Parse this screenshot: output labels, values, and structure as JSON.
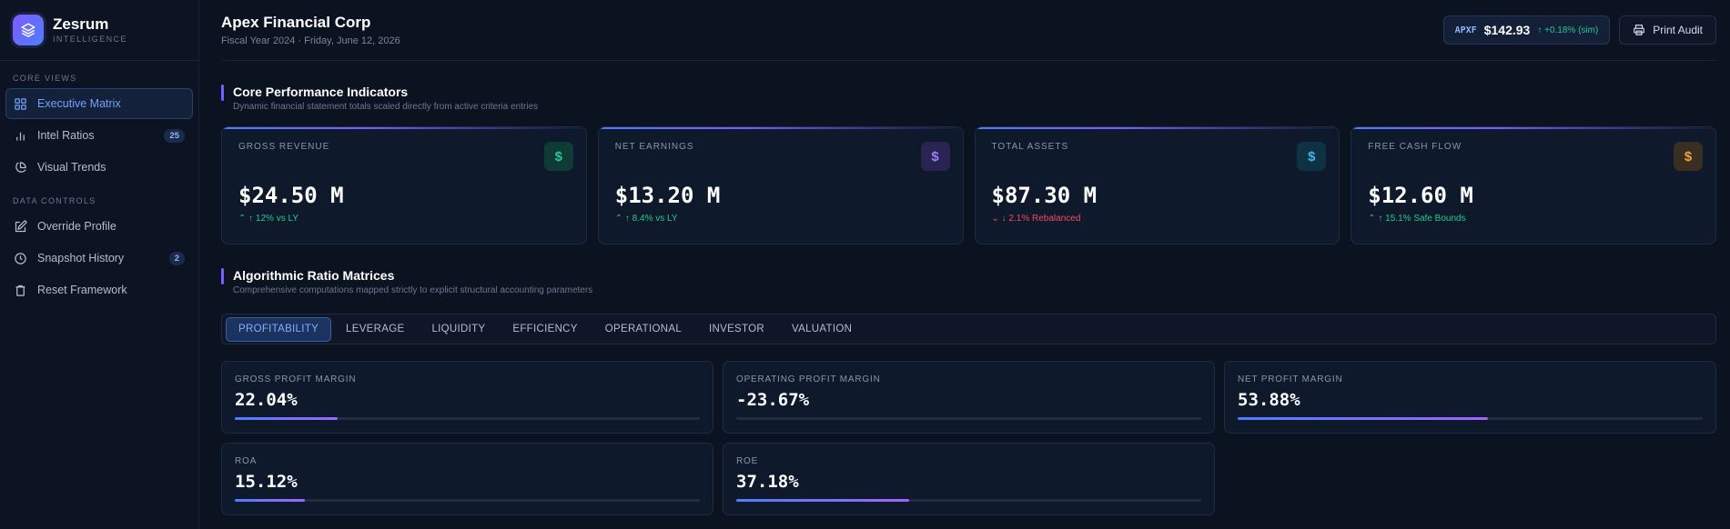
{
  "brand": {
    "name": "Zesrum",
    "sub": "INTELLIGENCE",
    "accent": "#7c5cff"
  },
  "sidebar": {
    "sections": [
      {
        "title": "CORE VIEWS",
        "items": [
          {
            "label": "Executive Matrix",
            "icon": "grid-icon",
            "active": true
          },
          {
            "label": "Intel Ratios",
            "icon": "bar-chart-icon",
            "badge": "25"
          },
          {
            "label": "Visual Trends",
            "icon": "pie-chart-icon"
          }
        ]
      },
      {
        "title": "DATA CONTROLS",
        "items": [
          {
            "label": "Override Profile",
            "icon": "edit-icon"
          },
          {
            "label": "Snapshot History",
            "icon": "clock-icon",
            "badge": "2"
          },
          {
            "label": "Reset Framework",
            "icon": "trash-icon"
          }
        ]
      }
    ]
  },
  "header": {
    "company": "Apex Financial Corp",
    "subtitle": "Fiscal Year 2024 · Friday, June 12, 2026",
    "ticker": {
      "symbol": "APXF",
      "price": "$142.93",
      "change": "↑ +0.18% (sim)"
    },
    "print_label": "Print Audit"
  },
  "kpi_section": {
    "title": "Core Performance Indicators",
    "subtitle": "Dynamic financial statement totals scaled directly from active criteria entries",
    "cards": [
      {
        "label": "GROSS REVENUE",
        "value": "$24.50 M",
        "delta": "⌃ ↑ 12% vs LY",
        "trend": "up",
        "icon_color": "#27c78f",
        "icon_bg": "#0f3a36"
      },
      {
        "label": "NET EARNINGS",
        "value": "$13.20 M",
        "delta": "⌃ ↑ 8.4% vs LY",
        "trend": "up",
        "icon_color": "#a27bff",
        "icon_bg": "#2a2452"
      },
      {
        "label": "TOTAL ASSETS",
        "value": "$87.30 M",
        "delta": "⌄ ↓ 2.1% Rebalanced",
        "trend": "down",
        "icon_color": "#3fb5e8",
        "icon_bg": "#0f3144"
      },
      {
        "label": "FREE CASH FLOW",
        "value": "$12.60 M",
        "delta": "⌃ ↑ 15.1% Safe Bounds",
        "trend": "up",
        "icon_color": "#f0a03c",
        "icon_bg": "#3a2e22"
      }
    ]
  },
  "ratio_section": {
    "title": "Algorithmic Ratio Matrices",
    "subtitle": "Comprehensive computations mapped strictly to explicit structural accounting parameters",
    "tabs": [
      "PROFITABILITY",
      "LEVERAGE",
      "LIQUIDITY",
      "EFFICIENCY",
      "OPERATIONAL",
      "INVESTOR",
      "VALUATION"
    ],
    "active_tab": 0,
    "ratios": [
      {
        "label": "GROSS PROFIT MARGIN",
        "value": "22.04%",
        "fill": 0.2204
      },
      {
        "label": "OPERATING PROFIT MARGIN",
        "value": "-23.67%",
        "fill": 0
      },
      {
        "label": "NET PROFIT MARGIN",
        "value": "53.88%",
        "fill": 0.5388
      },
      {
        "label": "ROA",
        "value": "15.12%",
        "fill": 0.1512
      },
      {
        "label": "ROE",
        "value": "37.18%",
        "fill": 0.3718
      }
    ]
  }
}
